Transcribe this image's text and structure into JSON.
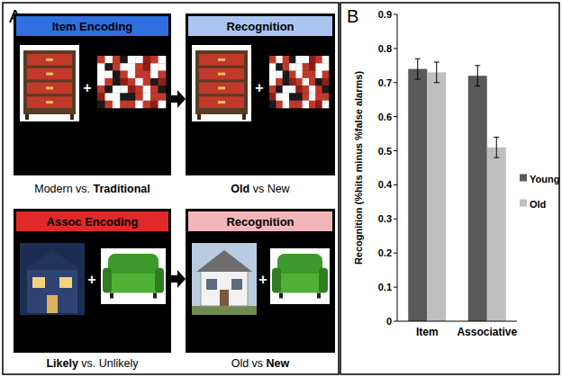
{
  "chart_data": {
    "type": "bar",
    "title": "B",
    "ylabel": "Recognition (%hits minus %false alarms)",
    "categories": [
      "Item",
      "Associative"
    ],
    "series": [
      {
        "name": "Young",
        "color": "#595959",
        "values": [
          0.74,
          0.72
        ],
        "errors": [
          0.03,
          0.03
        ]
      },
      {
        "name": "Old",
        "color": "#bfbfbf",
        "values": [
          0.73,
          0.51
        ],
        "errors": [
          0.03,
          0.03
        ]
      }
    ],
    "ylim": [
      0,
      0.9
    ],
    "yticks": [
      0,
      0.1,
      0.2,
      0.3,
      0.4,
      0.5,
      0.6,
      0.7,
      0.8,
      0.9
    ],
    "grid": false,
    "legend": "right"
  },
  "diagram": {
    "label": "A",
    "plus": "+",
    "rows": [
      {
        "encoding": {
          "title": "Item Encoding",
          "caption": [
            {
              "text": "Modern vs. ",
              "bold": false
            },
            {
              "text": "Traditional",
              "bold": true
            }
          ]
        },
        "recognition": {
          "title": "Recognition",
          "caption": [
            {
              "text": "Old",
              "bold": true
            },
            {
              "text": " vs New",
              "bold": false
            }
          ]
        }
      },
      {
        "encoding": {
          "title": "Assoc Encoding",
          "caption": [
            {
              "text": "Likely",
              "bold": true
            },
            {
              "text": " vs. Unlikely",
              "bold": false
            }
          ]
        },
        "recognition": {
          "title": "Recognition",
          "caption": [
            {
              "text": "Old vs ",
              "bold": false
            },
            {
              "text": "New",
              "bold": true
            }
          ]
        }
      }
    ]
  }
}
